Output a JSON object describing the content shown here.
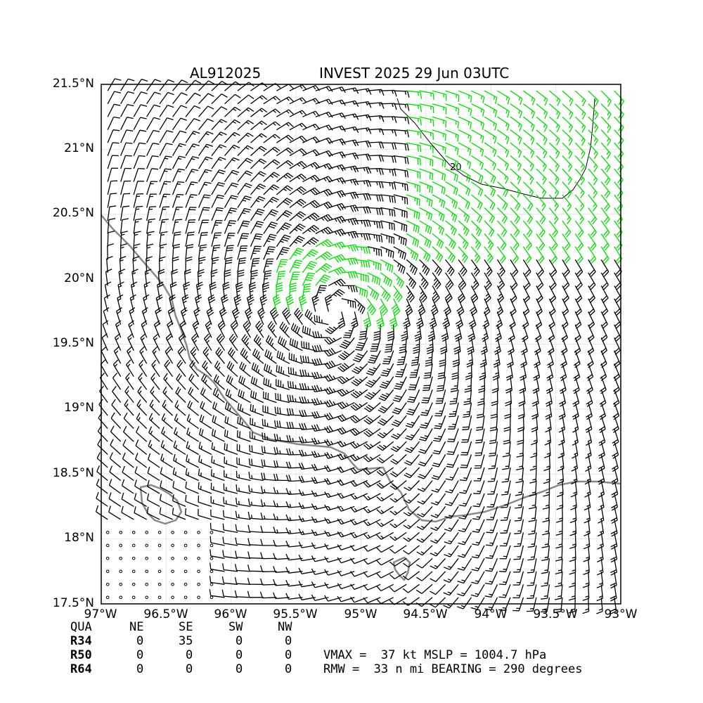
{
  "header": {
    "storm_id": "AL912025",
    "title": "INVEST 2025 29 Jun 03UTC"
  },
  "map": {
    "lat_labels": [
      "21.5°N",
      "21°N",
      "20.5°N",
      "20°N",
      "19.5°N",
      "19°N",
      "18.5°N",
      "18°N",
      "17.5°N"
    ],
    "lon_labels": [
      "97°W",
      "96.5°W",
      "96°W",
      "95.5°W",
      "95°W",
      "94.5°W",
      "94°W",
      "93.5°W",
      "93°W"
    ],
    "lat_range": [
      17.5,
      21.5
    ],
    "lon_range": [
      -97,
      -93
    ],
    "contour_label": "20",
    "colors": {
      "barb": "#000000",
      "strong_barb": "#00dd00",
      "coast": "#888888",
      "grid": "#e6e6e6"
    },
    "wind_field": {
      "center": [
        -95.2,
        19.75
      ],
      "note_grid_spacing_deg": 0.1
    }
  },
  "radii_table": {
    "headers": [
      "QUA",
      "NE",
      "SE",
      "SW",
      "NW"
    ],
    "rows": [
      {
        "label": "R34",
        "values": [
          "0",
          "35",
          "0",
          "0"
        ]
      },
      {
        "label": "R50",
        "values": [
          "0",
          "0",
          "0",
          "0"
        ]
      },
      {
        "label": "R64",
        "values": [
          "0",
          "0",
          "0",
          "0"
        ]
      }
    ]
  },
  "stats": {
    "line1": "VMAX =  37 kt MSLP = 1004.7 hPa",
    "line2": "RMW =  33 n mi BEARING = 290 degrees"
  }
}
